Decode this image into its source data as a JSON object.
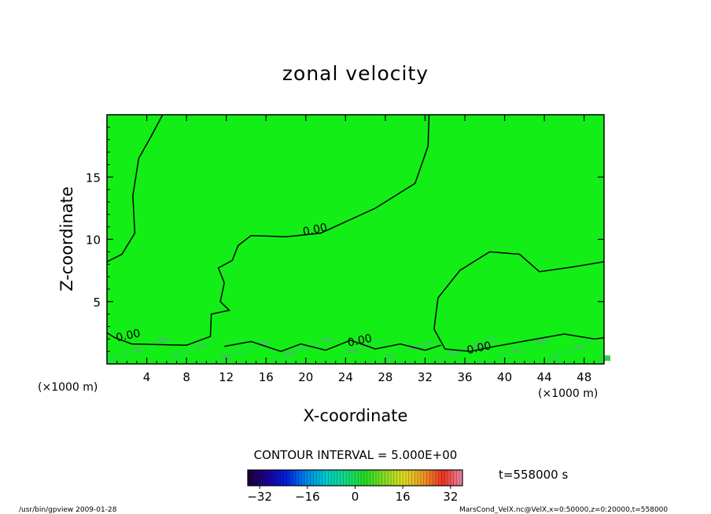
{
  "chart_data": {
    "type": "heatmap",
    "title": "zonal velocity",
    "xlabel": "X-coordinate",
    "ylabel": "Z-coordinate",
    "x_unit_left": "(×1000 m)",
    "x_unit_right": "(×1000 m)",
    "xlim": [
      0,
      50
    ],
    "ylim": [
      0,
      20
    ],
    "x_ticks": [
      4,
      8,
      12,
      16,
      20,
      24,
      28,
      32,
      36,
      40,
      44,
      48
    ],
    "y_ticks": [
      5,
      10,
      15
    ],
    "contour_interval_label": "CONTOUR INTERVAL = 5.000E+00",
    "contour_labels": [
      {
        "text": "0.00",
        "x": 21,
        "y": 10.5
      },
      {
        "text": "0.00",
        "x": 2.2,
        "y": 2.0
      },
      {
        "text": "0.00",
        "x": 25.5,
        "y": 1.6
      },
      {
        "text": "0.00",
        "x": 37.5,
        "y": 1.0
      }
    ],
    "contour_lines": [
      [
        [
          0,
          8.2
        ],
        [
          1.5,
          8.8
        ],
        [
          2.8,
          10.5
        ],
        [
          2.6,
          13.5
        ],
        [
          3.2,
          16.5
        ],
        [
          4.4,
          18.2
        ],
        [
          5.6,
          20
        ]
      ],
      [
        [
          32.4,
          20
        ],
        [
          32.3,
          17.5
        ],
        [
          31.0,
          14.5
        ],
        [
          27.0,
          12.5
        ],
        [
          21.5,
          10.5
        ],
        [
          18.0,
          10.2
        ],
        [
          14.5,
          10.3
        ],
        [
          13.2,
          9.5
        ],
        [
          12.6,
          8.3
        ],
        [
          11.2,
          7.7
        ],
        [
          11.8,
          6.5
        ],
        [
          11.4,
          5.0
        ],
        [
          12.3,
          4.3
        ],
        [
          10.5,
          4.0
        ],
        [
          10.4,
          2.2
        ],
        [
          8.0,
          1.5
        ],
        [
          2.5,
          1.6
        ],
        [
          0.8,
          2.1
        ],
        [
          0,
          2.5
        ]
      ],
      [
        [
          50,
          8.2
        ],
        [
          47.0,
          7.8
        ],
        [
          43.5,
          7.4
        ],
        [
          41.5,
          8.8
        ],
        [
          38.5,
          9.0
        ],
        [
          35.5,
          7.5
        ],
        [
          33.3,
          5.3
        ],
        [
          32.9,
          2.8
        ],
        [
          34.0,
          1.2
        ],
        [
          36.5,
          1.0
        ],
        [
          39.0,
          1.4
        ],
        [
          42.5,
          1.9
        ],
        [
          46.0,
          2.4
        ],
        [
          49.0,
          2.0
        ],
        [
          50,
          2.1
        ]
      ],
      [
        [
          11.8,
          1.4
        ],
        [
          14.5,
          1.8
        ],
        [
          17.5,
          1.0
        ],
        [
          19.5,
          1.6
        ],
        [
          22.0,
          1.1
        ],
        [
          24.5,
          1.9
        ],
        [
          27.0,
          1.2
        ],
        [
          29.5,
          1.6
        ],
        [
          32.0,
          1.1
        ],
        [
          33.6,
          1.5
        ]
      ]
    ],
    "field_background": "#12ee16",
    "colorbar": {
      "range": [
        -36,
        36
      ],
      "ticks": [
        -32,
        -16,
        0,
        16,
        32
      ],
      "tick_labels": [
        "−32",
        "−16",
        "0",
        "16",
        "32"
      ],
      "colors": [
        "#1a0033",
        "#1c0099",
        "#0022dd",
        "#0088ee",
        "#00cccc",
        "#11dd88",
        "#22dd22",
        "#88dd22",
        "#dddd22",
        "#ee9922",
        "#ee3322",
        "#ee88aa"
      ]
    },
    "time_label": "t=558000 s",
    "footer_left": "/usr/bin/gpview  2009-01-28",
    "footer_right": "MarsCond_VelX.nc@VelX,x=0:50000,z=0:20000,t=558000"
  }
}
